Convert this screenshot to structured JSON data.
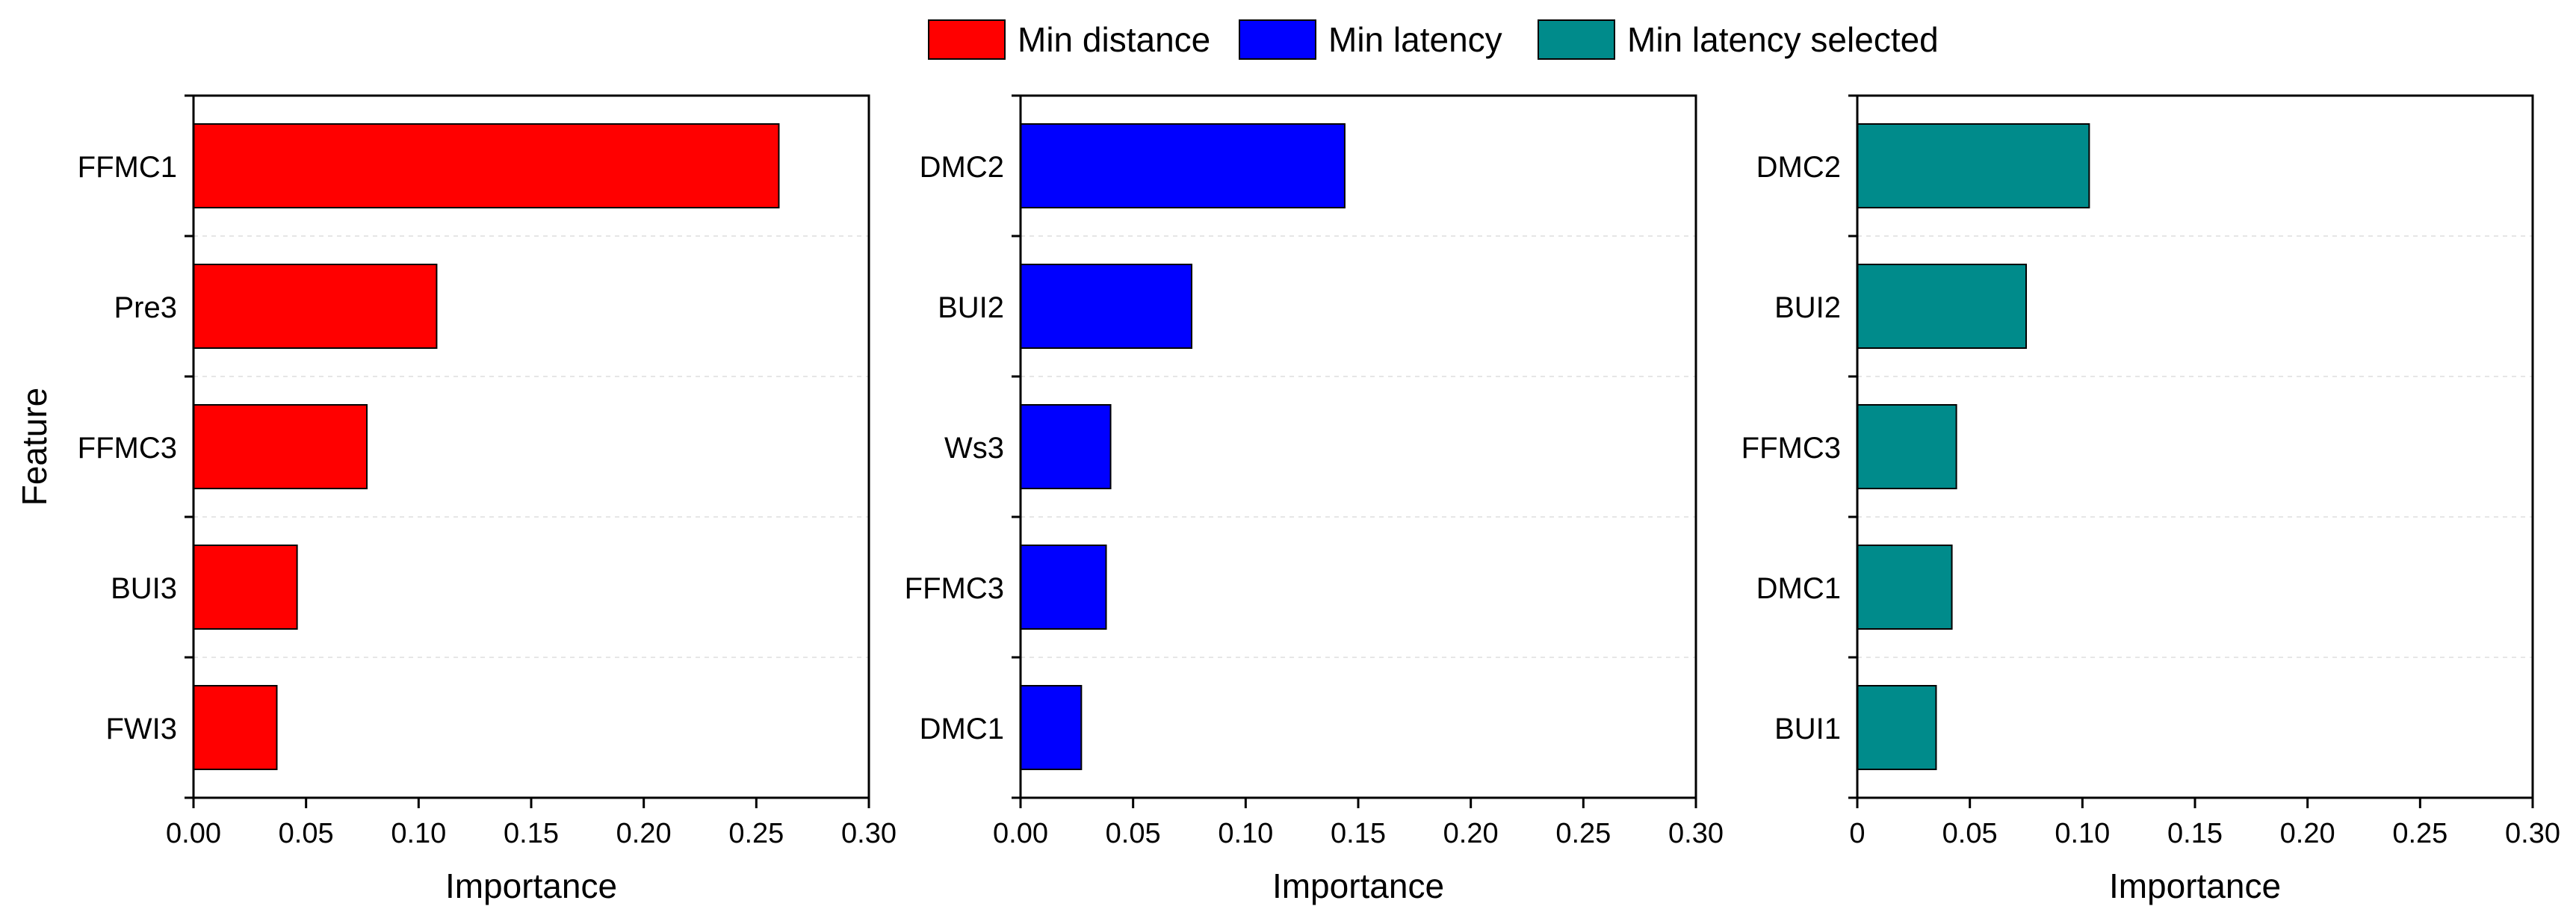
{
  "legend": {
    "items": [
      {
        "label": "Min distance",
        "color": "#ff0000"
      },
      {
        "label": "Min latency",
        "color": "#0000ff"
      },
      {
        "label": "Min latency selected",
        "color": "#008b8b"
      }
    ]
  },
  "chart_data": [
    {
      "type": "bar",
      "orientation": "horizontal",
      "series_name": "Min distance",
      "color": "#ff0000",
      "categories": [
        "FFMC1",
        "Pre3",
        "FFMC3",
        "BUI3",
        "FWI3"
      ],
      "values": [
        0.26,
        0.108,
        0.077,
        0.046,
        0.037
      ],
      "xlabel": "Importance",
      "ylabel": "Feature",
      "xlim": [
        0,
        0.3
      ],
      "xticks": [
        "0.00",
        "0.05",
        "0.10",
        "0.15",
        "0.20",
        "0.25",
        "0.30"
      ],
      "grid": "horizontal dashed"
    },
    {
      "type": "bar",
      "orientation": "horizontal",
      "series_name": "Min latency",
      "color": "#0000ff",
      "categories": [
        "DMC2",
        "BUI2",
        "Ws3",
        "FFMC3",
        "DMC1"
      ],
      "values": [
        0.144,
        0.076,
        0.04,
        0.038,
        0.027
      ],
      "xlabel": "Importance",
      "ylabel": "",
      "xlim": [
        0,
        0.3
      ],
      "xticks": [
        "0.00",
        "0.05",
        "0.10",
        "0.15",
        "0.20",
        "0.25",
        "0.30"
      ],
      "grid": "horizontal dashed"
    },
    {
      "type": "bar",
      "orientation": "horizontal",
      "series_name": "Min latency selected",
      "color": "#008b8b",
      "categories": [
        "DMC2",
        "BUI2",
        "FFMC3",
        "DMC1",
        "BUI1"
      ],
      "values": [
        0.103,
        0.075,
        0.044,
        0.042,
        0.035
      ],
      "xlabel": "Importance",
      "ylabel": "",
      "xlim": [
        0,
        0.3
      ],
      "xticks": [
        "0",
        "0.05",
        "0.10",
        "0.15",
        "0.20",
        "0.25",
        "0.30"
      ],
      "grid": "horizontal dashed"
    }
  ]
}
